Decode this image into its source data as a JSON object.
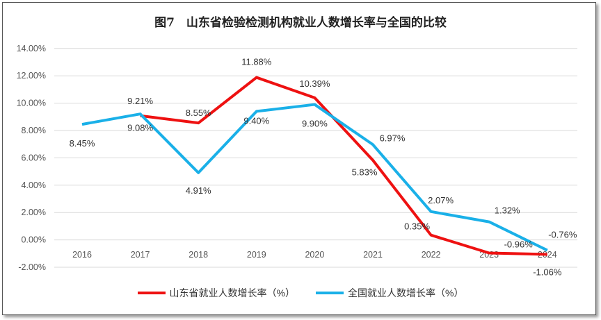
{
  "chart_data": {
    "type": "line",
    "title": "图7　山东省检验检测机构就业人数增长率与全国的比较",
    "categories": [
      "2016",
      "2017",
      "2018",
      "2019",
      "2020",
      "2021",
      "2022",
      "2023",
      "2024"
    ],
    "ylim": [
      -2,
      14
    ],
    "yticks": [
      "-2.00%",
      "0.00%",
      "2.00%",
      "4.00%",
      "6.00%",
      "8.00%",
      "10.00%",
      "12.00%",
      "14.00%"
    ],
    "grid": true,
    "legend_position": "bottom",
    "series": [
      {
        "name": "山东省就业人数增长率（%）",
        "color": "#ee1111",
        "values": [
          null,
          9.08,
          8.55,
          11.88,
          10.39,
          5.83,
          0.35,
          -0.96,
          -1.06
        ],
        "labels": [
          "",
          "9.08%",
          "8.55%",
          "11.88%",
          "10.39%",
          "5.83%",
          "0.35%",
          "-0.96%",
          "-1.06%"
        ]
      },
      {
        "name": "全国就业人数增长率（%）",
        "color": "#1ab0e8",
        "values": [
          8.45,
          9.21,
          4.91,
          9.4,
          9.9,
          6.97,
          2.07,
          1.32,
          -0.76
        ],
        "labels": [
          "8.45%",
          "9.21%",
          "4.91%",
          "9.40%",
          "9.90%",
          "6.97%",
          "2.07%",
          "1.32%",
          "-0.76%"
        ]
      }
    ]
  }
}
